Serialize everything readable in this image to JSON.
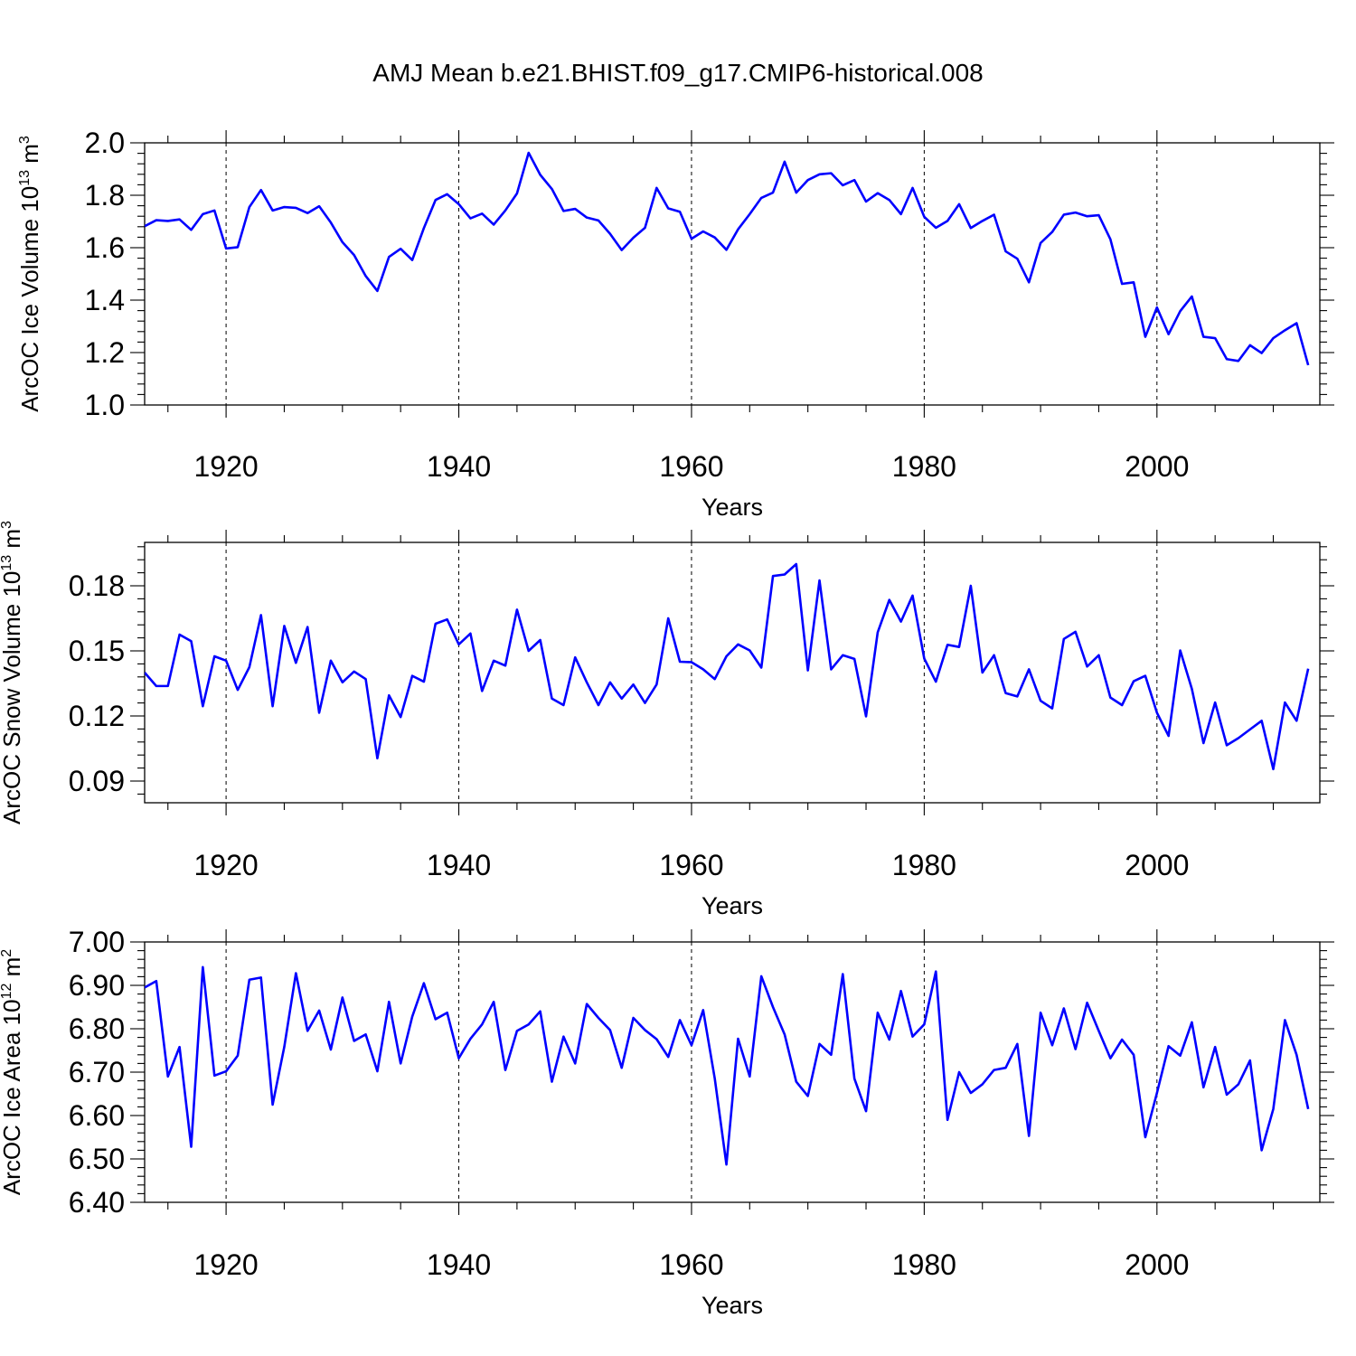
{
  "figure": {
    "title": "AMJ Mean b.e21.BHIST.f09_g17.CMIP6-historical.008"
  },
  "chart_data": [
    {
      "type": "line",
      "title": "",
      "xlabel": "Years",
      "ylabel_main": "ArcOC Ice Volume 10",
      "ylabel_exp": "13",
      "ylabel_unit": " m",
      "ylabel_unit_exp": "3",
      "xlim": [
        1913,
        2014
      ],
      "ylim": [
        1.0,
        2.0
      ],
      "yticks": [
        1.0,
        1.2,
        1.4,
        1.6,
        1.8,
        2.0
      ],
      "ytick_labels": [
        "1.0",
        "1.2",
        "1.4",
        "1.6",
        "1.8",
        "2.0"
      ],
      "xticks": [
        1920,
        1940,
        1960,
        1980,
        2000
      ],
      "xtick_labels": [
        "1920",
        "1940",
        "1960",
        "1980",
        "2000"
      ],
      "grid_x": [
        1920,
        1940,
        1960,
        1980,
        2000
      ],
      "line_color": "#0000ff",
      "x_start": 1913,
      "values": [
        1.682,
        1.705,
        1.702,
        1.708,
        1.668,
        1.728,
        1.742,
        1.597,
        1.602,
        1.755,
        1.82,
        1.742,
        1.755,
        1.752,
        1.732,
        1.758,
        1.696,
        1.621,
        1.572,
        1.492,
        1.435,
        1.565,
        1.596,
        1.553,
        1.675,
        1.782,
        1.804,
        1.766,
        1.712,
        1.73,
        1.688,
        1.742,
        1.807,
        1.962,
        1.878,
        1.824,
        1.74,
        1.748,
        1.715,
        1.704,
        1.653,
        1.591,
        1.638,
        1.676,
        1.828,
        1.75,
        1.737,
        1.634,
        1.662,
        1.639,
        1.592,
        1.67,
        1.728,
        1.79,
        1.81,
        1.928,
        1.81,
        1.858,
        1.88,
        1.884,
        1.838,
        1.858,
        1.776,
        1.808,
        1.782,
        1.728,
        1.828,
        1.718,
        1.676,
        1.702,
        1.766,
        1.675,
        1.702,
        1.726,
        1.586,
        1.558,
        1.468,
        1.618,
        1.66,
        1.726,
        1.734,
        1.72,
        1.724,
        1.632,
        1.462,
        1.468,
        1.26,
        1.372,
        1.27,
        1.358,
        1.414,
        1.26,
        1.255,
        1.175,
        1.168,
        1.228,
        1.198,
        1.255,
        1.285,
        1.312,
        1.152
      ]
    },
    {
      "type": "line",
      "title": "",
      "xlabel": "Years",
      "ylabel_main": "ArcOC Snow Volume 10",
      "ylabel_exp": "13",
      "ylabel_unit": " m",
      "ylabel_unit_exp": "3",
      "xlim": [
        1913,
        2014
      ],
      "ylim": [
        0.08,
        0.2
      ],
      "yticks": [
        0.09,
        0.12,
        0.15,
        0.18
      ],
      "ytick_labels": [
        "0.09",
        "0.12",
        "0.15",
        "0.18"
      ],
      "xticks": [
        1920,
        1940,
        1960,
        1980,
        2000
      ],
      "xtick_labels": [
        "1920",
        "1940",
        "1960",
        "1980",
        "2000"
      ],
      "grid_x": [
        1920,
        1940,
        1960,
        1980,
        2000
      ],
      "line_color": "#0000ff",
      "x_start": 1913,
      "values": [
        0.14,
        0.1338,
        0.1338,
        0.1575,
        0.1545,
        0.1245,
        0.1475,
        0.1455,
        0.132,
        0.1425,
        0.1665,
        0.1245,
        0.1615,
        0.1445,
        0.161,
        0.1215,
        0.1455,
        0.1355,
        0.1405,
        0.137,
        0.1005,
        0.1295,
        0.1195,
        0.1385,
        0.1358,
        0.1625,
        0.1645,
        0.153,
        0.158,
        0.1315,
        0.1455,
        0.1432,
        0.169,
        0.15,
        0.155,
        0.128,
        0.125,
        0.147,
        0.1355,
        0.125,
        0.1355,
        0.128,
        0.1345,
        0.126,
        0.1345,
        0.165,
        0.145,
        0.1448,
        0.1415,
        0.137,
        0.1475,
        0.153,
        0.1502,
        0.1423,
        0.1845,
        0.1852,
        0.19,
        0.141,
        0.1825,
        0.1415,
        0.148,
        0.1463,
        0.1198,
        0.1585,
        0.1735,
        0.1635,
        0.1755,
        0.1465,
        0.1358,
        0.1528,
        0.1518,
        0.18,
        0.14,
        0.148,
        0.1305,
        0.129,
        0.1415,
        0.127,
        0.1235,
        0.1555,
        0.1588,
        0.1428,
        0.148,
        0.1285,
        0.125,
        0.136,
        0.1385,
        0.1215,
        0.1108,
        0.1502,
        0.1325,
        0.1075,
        0.1262,
        0.1065,
        0.1098,
        0.1138,
        0.1178,
        0.0955,
        0.1262,
        0.1178,
        0.1418
      ]
    },
    {
      "type": "line",
      "title": "",
      "xlabel": "Years",
      "ylabel_main": "ArcOC Ice Area 10",
      "ylabel_exp": "12",
      "ylabel_unit": " m",
      "ylabel_unit_exp": "2",
      "xlim": [
        1913,
        2014
      ],
      "ylim": [
        6.4,
        7.0
      ],
      "yticks": [
        6.4,
        6.5,
        6.6,
        6.7,
        6.8,
        6.9,
        7.0
      ],
      "ytick_labels": [
        "6.40",
        "6.50",
        "6.60",
        "6.70",
        "6.80",
        "6.90",
        "7.00"
      ],
      "xticks": [
        1920,
        1940,
        1960,
        1980,
        2000
      ],
      "xtick_labels": [
        "1920",
        "1940",
        "1960",
        "1980",
        "2000"
      ],
      "grid_x": [
        1920,
        1940,
        1960,
        1980,
        2000
      ],
      "line_color": "#0000ff",
      "x_start": 1913,
      "values": [
        6.895,
        6.91,
        6.69,
        6.758,
        6.528,
        6.942,
        6.692,
        6.702,
        6.738,
        6.913,
        6.918,
        6.625,
        6.758,
        6.928,
        6.795,
        6.842,
        6.752,
        6.872,
        6.772,
        6.787,
        6.702,
        6.862,
        6.72,
        6.828,
        6.905,
        6.822,
        6.837,
        6.732,
        6.777,
        6.81,
        6.862,
        6.705,
        6.795,
        6.81,
        6.84,
        6.678,
        6.782,
        6.72,
        6.857,
        6.825,
        6.797,
        6.71,
        6.825,
        6.797,
        6.776,
        6.735,
        6.82,
        6.762,
        6.843,
        6.685,
        6.487,
        6.777,
        6.69,
        6.921,
        6.85,
        6.787,
        6.678,
        6.645,
        6.765,
        6.74,
        6.926,
        6.685,
        6.61,
        6.837,
        6.775,
        6.887,
        6.782,
        6.81,
        6.932,
        6.59,
        6.7,
        6.652,
        6.672,
        6.705,
        6.71,
        6.765,
        6.553,
        6.837,
        6.762,
        6.847,
        6.753,
        6.86,
        6.795,
        6.732,
        6.775,
        6.74,
        6.55,
        6.652,
        6.76,
        6.738,
        6.815,
        6.665,
        6.758,
        6.648,
        6.672,
        6.727,
        6.52,
        6.615,
        6.82,
        6.74,
        6.615
      ]
    }
  ]
}
